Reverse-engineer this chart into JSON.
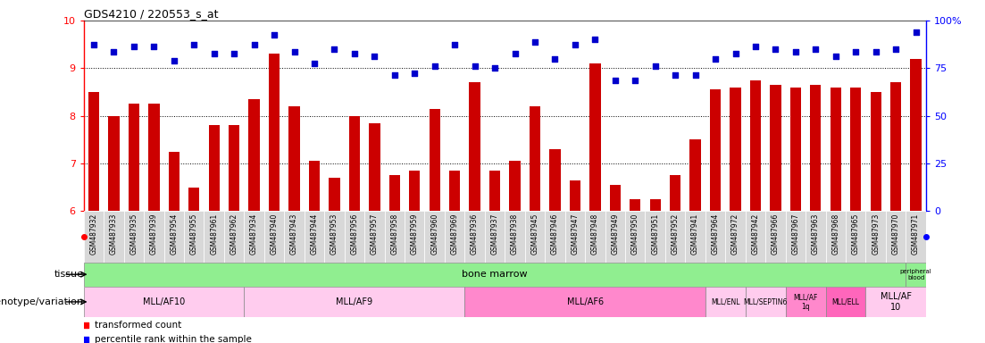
{
  "title": "GDS4210 / 220553_s_at",
  "samples": [
    "GSM487932",
    "GSM487933",
    "GSM487935",
    "GSM487939",
    "GSM487954",
    "GSM487955",
    "GSM487961",
    "GSM487962",
    "GSM487934",
    "GSM487940",
    "GSM487943",
    "GSM487944",
    "GSM487953",
    "GSM487956",
    "GSM487957",
    "GSM487958",
    "GSM487959",
    "GSM487960",
    "GSM487969",
    "GSM487936",
    "GSM487937",
    "GSM487938",
    "GSM487945",
    "GSM487946",
    "GSM487947",
    "GSM487948",
    "GSM487949",
    "GSM487950",
    "GSM487951",
    "GSM487952",
    "GSM487941",
    "GSM487964",
    "GSM487972",
    "GSM487942",
    "GSM487966",
    "GSM487967",
    "GSM487963",
    "GSM487968",
    "GSM487965",
    "GSM487973",
    "GSM487970",
    "GSM487971"
  ],
  "bar_values": [
    8.5,
    8.0,
    8.25,
    8.25,
    7.25,
    6.5,
    7.8,
    7.8,
    8.35,
    9.3,
    8.2,
    7.05,
    6.7,
    8.0,
    7.85,
    6.75,
    6.85,
    8.15,
    6.85,
    8.7,
    6.85,
    7.05,
    8.2,
    7.3,
    6.65,
    9.1,
    6.55,
    6.25,
    6.25,
    6.75,
    7.5,
    8.55,
    8.6,
    8.75,
    8.65,
    8.6,
    8.65,
    8.6,
    8.6,
    8.5,
    8.7,
    9.2
  ],
  "dot_values": [
    9.5,
    9.35,
    9.45,
    9.45,
    9.15,
    9.5,
    9.3,
    9.3,
    9.5,
    9.7,
    9.35,
    9.1,
    9.4,
    9.3,
    9.25,
    8.85,
    8.9,
    9.05,
    9.5,
    9.05,
    9.0,
    9.3,
    9.55,
    9.2,
    9.5,
    9.6,
    8.75,
    8.75,
    9.05,
    8.85,
    8.85,
    9.2,
    9.3,
    9.45,
    9.4,
    9.35,
    9.4,
    9.25,
    9.35,
    9.35,
    9.4,
    9.75
  ],
  "ylim_left": [
    6,
    10
  ],
  "yticks_left": [
    6,
    7,
    8,
    9,
    10
  ],
  "right_ytick_positions": [
    6.0,
    7.0,
    8.0,
    9.0,
    10.0
  ],
  "right_yticklabels": [
    "0",
    "25",
    "50",
    "75",
    "100%"
  ],
  "bar_color": "#CC0000",
  "dot_color": "#0000CC",
  "bar_bottom": 6.0,
  "tissue_row": [
    {
      "label": "bone marrow",
      "start": 0,
      "end": 41,
      "color": "#90EE90"
    },
    {
      "label": "peripheral\nblood",
      "start": 41,
      "end": 42,
      "color": "#90EE90"
    }
  ],
  "geno_row": [
    {
      "label": "MLL/AF10",
      "start": 0,
      "end": 8,
      "color": "#FFCCEE"
    },
    {
      "label": "MLL/AF9",
      "start": 8,
      "end": 19,
      "color": "#FFCCEE"
    },
    {
      "label": "MLL/AF6",
      "start": 19,
      "end": 31,
      "color": "#FF88CC"
    },
    {
      "label": "MLL/ENL",
      "start": 31,
      "end": 33,
      "color": "#FFCCEE"
    },
    {
      "label": "MLL/SEPTIN6",
      "start": 33,
      "end": 35,
      "color": "#FFCCEE"
    },
    {
      "label": "MLL/AF\n1q",
      "start": 35,
      "end": 37,
      "color": "#FF88CC"
    },
    {
      "label": "MLL/ELL",
      "start": 37,
      "end": 39,
      "color": "#FF66BB"
    },
    {
      "label": "MLL/AF\n10",
      "start": 39,
      "end": 42,
      "color": "#FFCCEE"
    }
  ]
}
